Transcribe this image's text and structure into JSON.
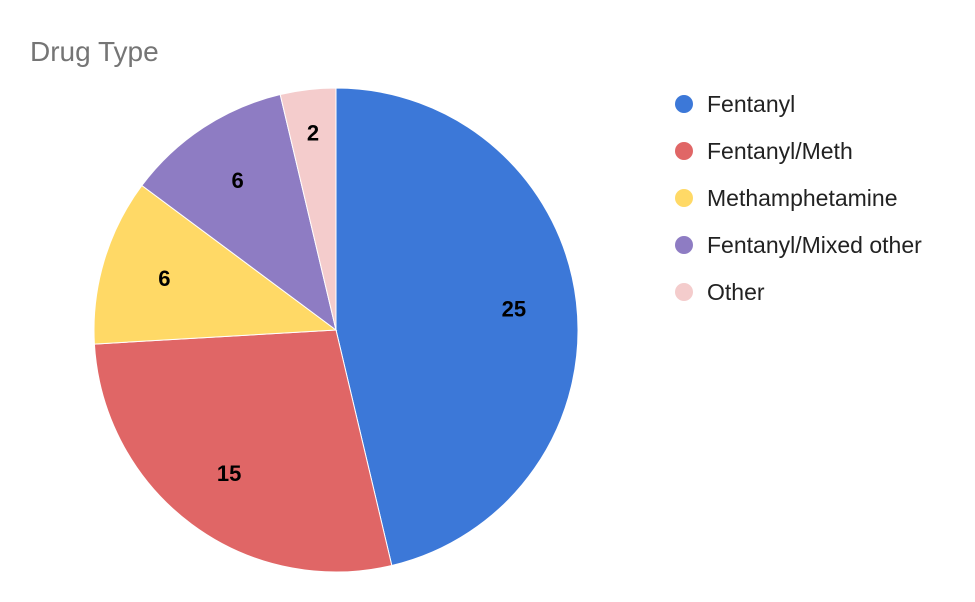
{
  "chart_data": {
    "type": "pie",
    "title": "Drug Type",
    "legend_position": "right",
    "slices": [
      {
        "label": "Fentanyl",
        "value": 25,
        "color": "#3c78d8"
      },
      {
        "label": "Fentanyl/Meth",
        "value": 15,
        "color": "#e06666"
      },
      {
        "label": "Methamphetamine",
        "value": 6,
        "color": "#ffd966"
      },
      {
        "label": "Fentanyl/Mixed other",
        "value": 6,
        "color": "#8e7cc3"
      },
      {
        "label": "Other",
        "value": 2,
        "color": "#f4cccc"
      }
    ]
  }
}
